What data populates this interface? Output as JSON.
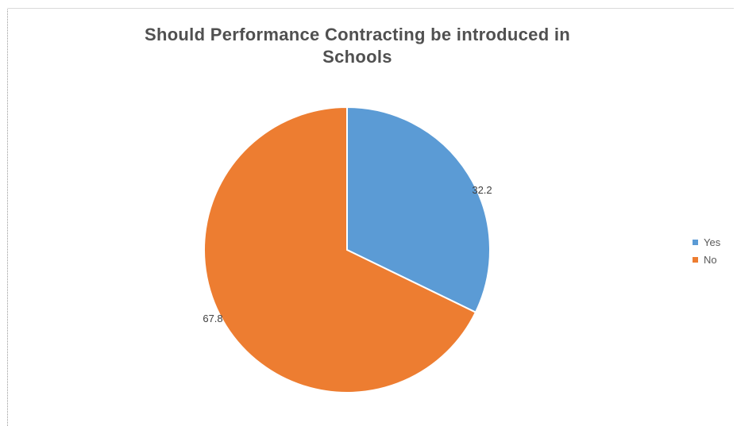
{
  "chart_data": {
    "type": "pie",
    "title_lines": [
      "Should Performance Contracting be introduced in",
      "Schools"
    ],
    "categories": [
      "Yes",
      "No"
    ],
    "values": [
      32.2,
      67.8
    ],
    "data_labels": [
      "32.2",
      "67.8"
    ],
    "colors": [
      "#5b9bd5",
      "#ed7d31"
    ],
    "start_angle_deg": 0,
    "direction": "clockwise",
    "legend": {
      "placement": "right",
      "entries": [
        "Yes",
        "No"
      ]
    }
  }
}
